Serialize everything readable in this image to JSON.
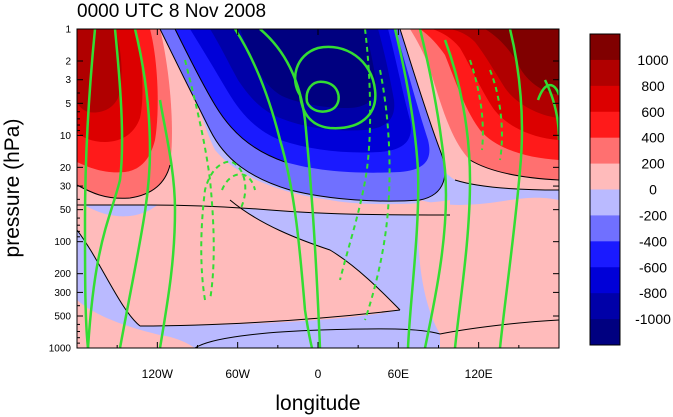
{
  "chart_data": {
    "type": "heatmap",
    "title": "0000 UTC 8 Nov 2008",
    "xlabel": "longitude",
    "ylabel": "pressure (hPa)",
    "x_ticks": [
      {
        "value": -120,
        "label": "120W"
      },
      {
        "value": -60,
        "label": "60W"
      },
      {
        "value": 0,
        "label": "0"
      },
      {
        "value": 60,
        "label": "60E"
      },
      {
        "value": 120,
        "label": "120E"
      }
    ],
    "y_ticks": [
      {
        "value": 1,
        "label": "1"
      },
      {
        "value": 2,
        "label": "2"
      },
      {
        "value": 3,
        "label": "3"
      },
      {
        "value": 5,
        "label": "5"
      },
      {
        "value": 10,
        "label": "10"
      },
      {
        "value": 20,
        "label": "20"
      },
      {
        "value": 30,
        "label": "30"
      },
      {
        "value": 50,
        "label": "50"
      },
      {
        "value": 100,
        "label": "100"
      },
      {
        "value": 200,
        "label": "200"
      },
      {
        "value": 300,
        "label": "300"
      },
      {
        "value": 500,
        "label": "500"
      },
      {
        "value": 1000,
        "label": "1000"
      }
    ],
    "xlim": [
      -180,
      180
    ],
    "ylim": [
      1000,
      1
    ],
    "y_scale": "log",
    "colorbar": {
      "labels": [
        "1000",
        "800",
        "600",
        "400",
        "200",
        "0",
        "-200",
        "-400",
        "-600",
        "-800",
        "-1000"
      ],
      "colors": [
        "#800000",
        "#b00000",
        "#dc0000",
        "#ff1a1a",
        "#ff7070",
        "#ffbbbb",
        "#babaff",
        "#7070ff",
        "#1a1aff",
        "#0000d8",
        "#0000a8",
        "#000080"
      ]
    },
    "colors": {
      "contour_line": "#000000",
      "overlay_contour": "#33dd33"
    }
  }
}
